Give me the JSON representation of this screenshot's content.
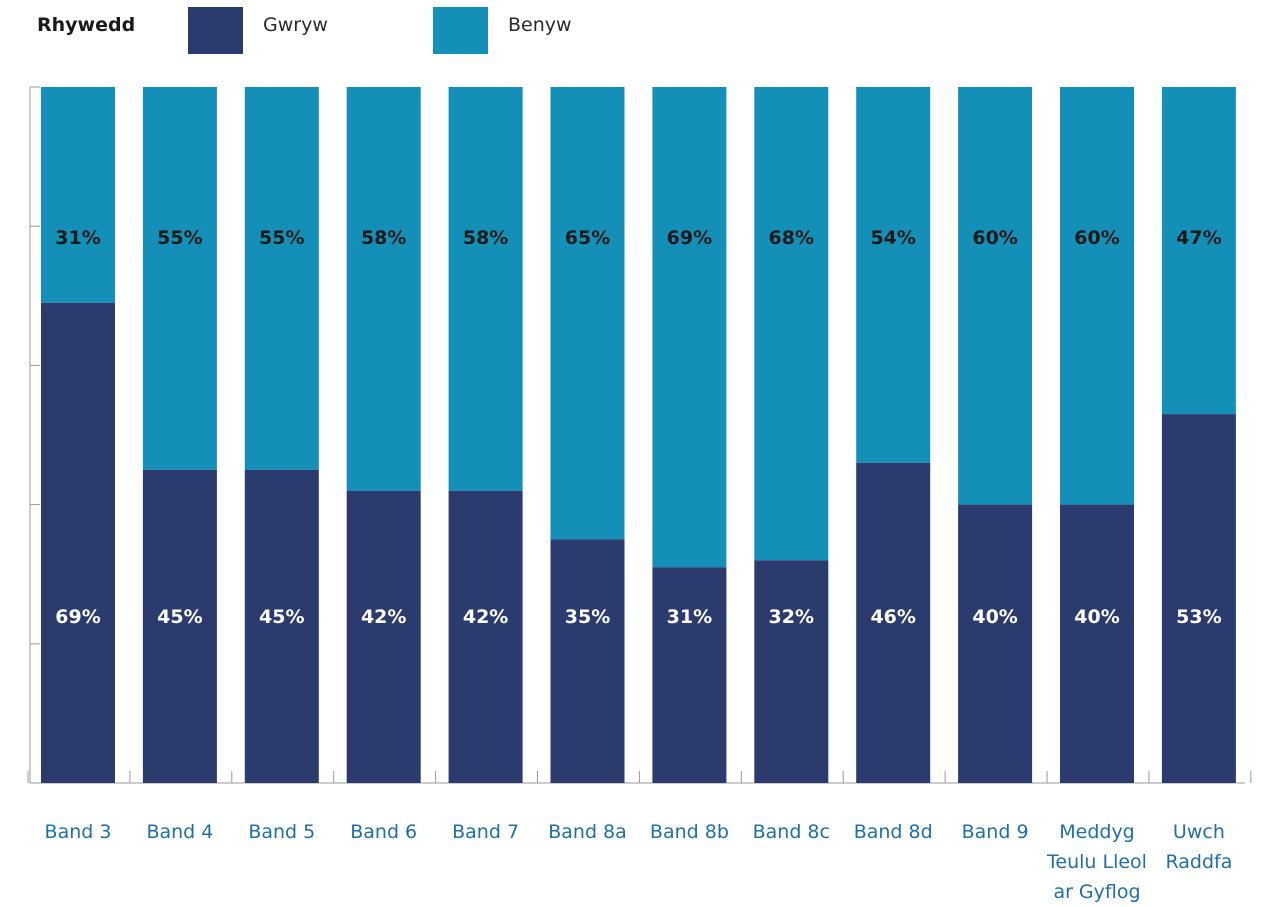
{
  "legend": {
    "title": "Rhywedd",
    "items": [
      {
        "name": "Gwryw",
        "color": "#2c3b6e"
      },
      {
        "name": "Benyw",
        "color": "#1490b8"
      }
    ]
  },
  "chart_data": {
    "type": "bar",
    "stacked": true,
    "orientation": "vertical",
    "categories": [
      [
        "Band 3"
      ],
      [
        "Band 4"
      ],
      [
        "Band 5"
      ],
      [
        "Band 6"
      ],
      [
        "Band 7"
      ],
      [
        "Band 8a"
      ],
      [
        "Band 8b"
      ],
      [
        "Band 8c"
      ],
      [
        "Band 8d"
      ],
      [
        "Band 9"
      ],
      [
        "Meddyg",
        "Teulu Lleol",
        "ar Gyflog"
      ],
      [
        "Uwch",
        "Raddfa"
      ]
    ],
    "series": [
      {
        "name": "Gwryw",
        "color": "#2c3b6e",
        "label_color": "#ffffff",
        "values": [
          69,
          45,
          45,
          42,
          42,
          35,
          31,
          32,
          46,
          40,
          40,
          53
        ],
        "labels": [
          "69%",
          "45%",
          "45%",
          "42%",
          "42%",
          "35%",
          "31%",
          "32%",
          "46%",
          "40%",
          "40%",
          "53%"
        ]
      },
      {
        "name": "Benyw",
        "color": "#1490b8",
        "label_color": "#1a1a1a",
        "values": [
          31,
          55,
          55,
          58,
          58,
          65,
          69,
          68,
          54,
          60,
          60,
          47
        ],
        "labels": [
          "31%",
          "55%",
          "55%",
          "58%",
          "58%",
          "65%",
          "69%",
          "68%",
          "54%",
          "60%",
          "60%",
          "47%"
        ]
      }
    ],
    "ylim": [
      0,
      100
    ],
    "category_label_color": "#1f6fa8",
    "grid": false,
    "legend_position": "top-left"
  }
}
